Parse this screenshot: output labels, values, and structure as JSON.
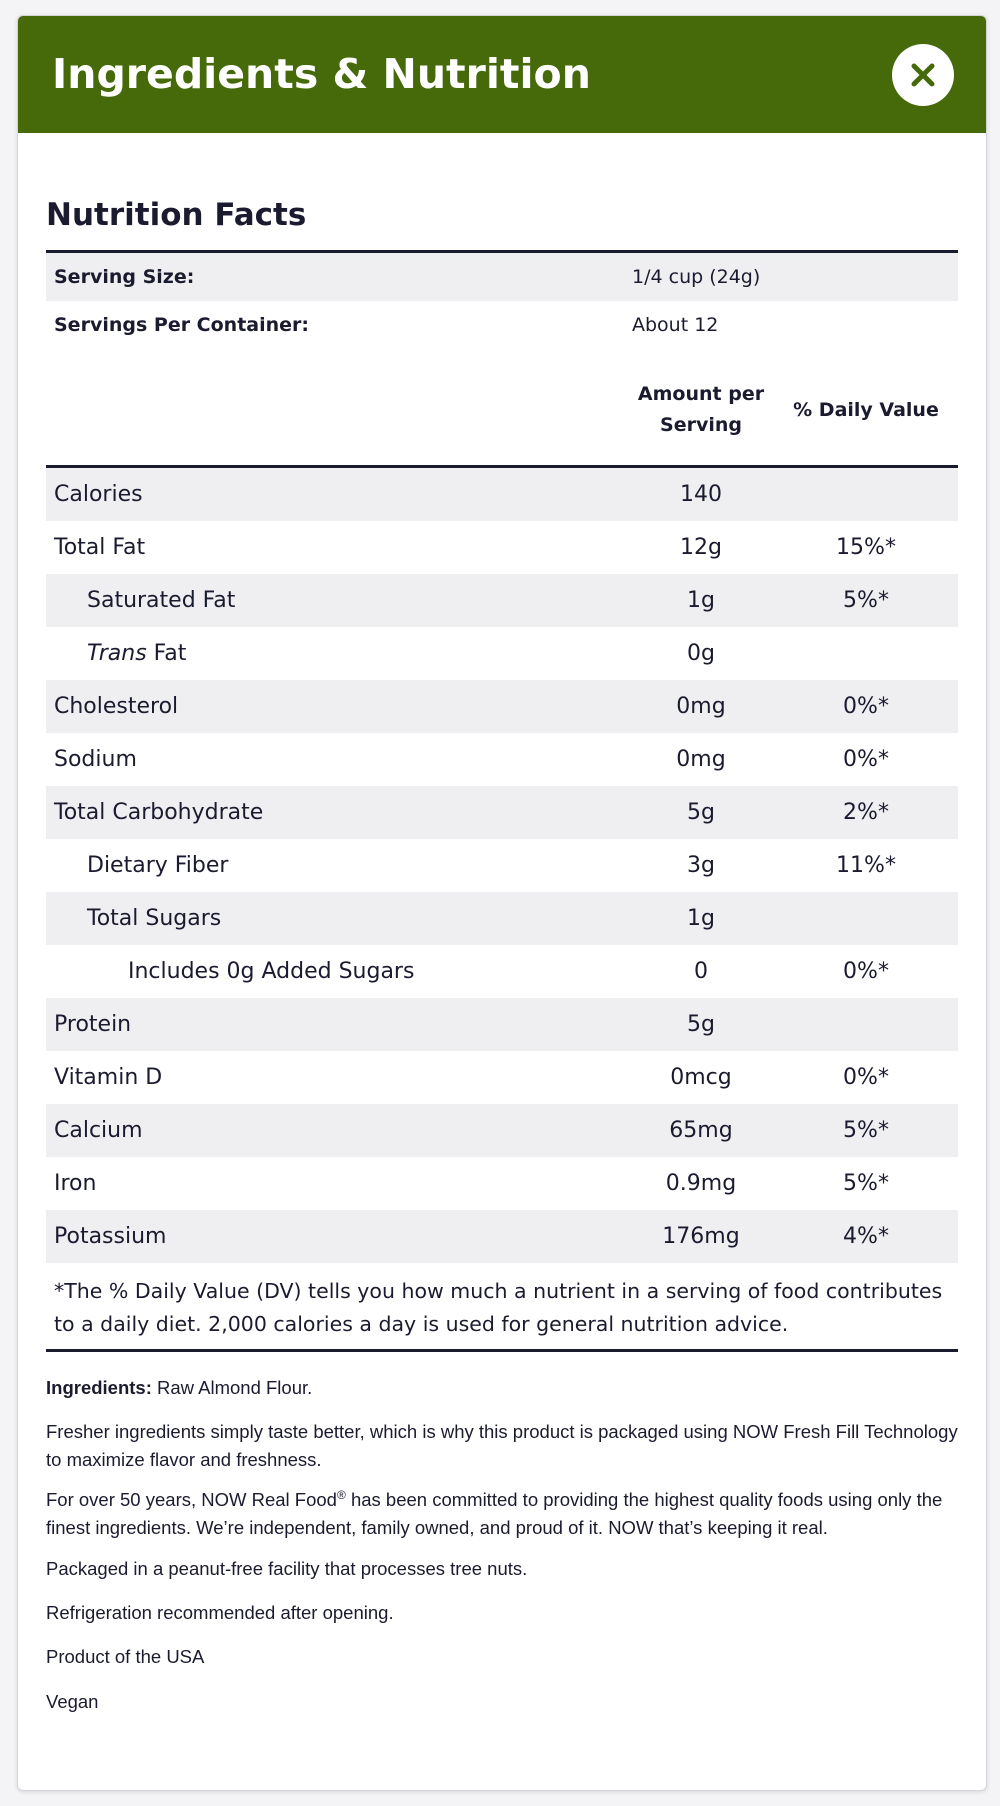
{
  "modal": {
    "title": "Ingredients & Nutrition",
    "close_icon": "close-icon"
  },
  "nutrition": {
    "title": "Nutrition Facts",
    "serving_size_label": "Serving Size:",
    "serving_size_value": "1/4 cup (24g)",
    "servings_per_container_label": "Servings Per Container:",
    "servings_per_container_value": "About 12",
    "col_amount_line1": "Amount per",
    "col_amount_line2": "Serving",
    "col_daily_value": "% Daily Value",
    "rows": [
      {
        "name": "Calories",
        "amount": "140",
        "dv": "",
        "indent": 0
      },
      {
        "name": "Total Fat",
        "amount": "12g",
        "dv": "15%*",
        "indent": 0
      },
      {
        "name": "Saturated Fat",
        "amount": "1g",
        "dv": "5%*",
        "indent": 1
      },
      {
        "name": "Fat",
        "prefix_italic": "Trans",
        "amount": "0g",
        "dv": "",
        "indent": 1
      },
      {
        "name": "Cholesterol",
        "amount": "0mg",
        "dv": "0%*",
        "indent": 0
      },
      {
        "name": "Sodium",
        "amount": "0mg",
        "dv": "0%*",
        "indent": 0
      },
      {
        "name": "Total Carbohydrate",
        "amount": "5g",
        "dv": "2%*",
        "indent": 0
      },
      {
        "name": "Dietary Fiber",
        "amount": "3g",
        "dv": "11%*",
        "indent": 1
      },
      {
        "name": "Total Sugars",
        "amount": "1g",
        "dv": "",
        "indent": 1
      },
      {
        "name": "Includes 0g Added Sugars",
        "amount": "0",
        "dv": "0%*",
        "indent": 2
      },
      {
        "name": "Protein",
        "amount": "5g",
        "dv": "",
        "indent": 0
      },
      {
        "name": "Vitamin D",
        "amount": "0mcg",
        "dv": "0%*",
        "indent": 0
      },
      {
        "name": "Calcium",
        "amount": "65mg",
        "dv": "5%*",
        "indent": 0
      },
      {
        "name": "Iron",
        "amount": "0.9mg",
        "dv": "5%*",
        "indent": 0
      },
      {
        "name": "Potassium",
        "amount": "176mg",
        "dv": "4%*",
        "indent": 0
      }
    ],
    "footnote": "*The % Daily Value (DV) tells you how much a nutrient in a serving of food contributes to a daily diet. 2,000 calories a day is used for general nutrition advice."
  },
  "info": {
    "ingredients_label": "Ingredients:",
    "ingredients_value": " Raw Almond Flour.",
    "p1": "Fresher ingredients simply taste better, which is why this product is packaged using NOW Fresh Fill Technology to maximize flavor and freshness.",
    "p2_a": "For over 50 years, NOW Real Food",
    "p2_reg": "®",
    "p2_b": " has been committed to providing the highest quality foods using only the finest ingredients. We’re independent, family owned, and proud of it. NOW that’s keeping it real.",
    "p3": "Packaged in a peanut-free facility that processes tree nuts.",
    "p4": "Refrigeration recommended after opening.",
    "p5": "Product of the USA",
    "p6": "Vegan"
  },
  "colors": {
    "header_bg": "#466a0a",
    "close_icon_color": "#466a0a",
    "row_shade": "#efeff2",
    "text": "#1b1b2f"
  }
}
